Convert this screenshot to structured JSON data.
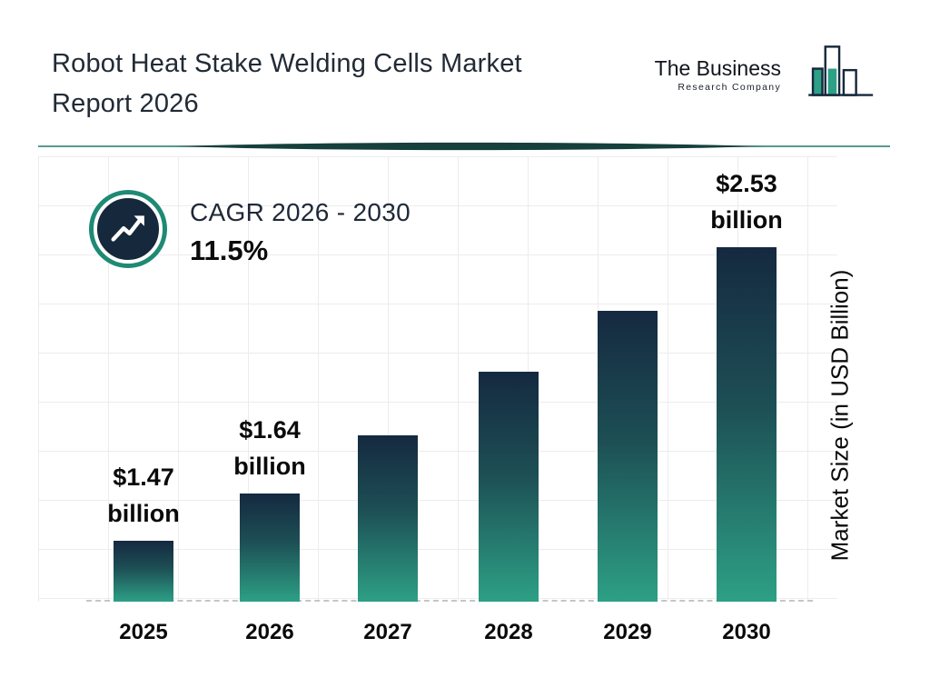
{
  "header": {
    "title": "Robot Heat Stake Welding Cells Market Report 2026",
    "title_line1": "Robot Heat Stake Welding Cells Market",
    "title_line2": "Report 2026"
  },
  "logo": {
    "line1": "The Business",
    "line2": "Research Company"
  },
  "cagr": {
    "label": "CAGR 2026 - 2030",
    "value": "11.5%"
  },
  "chart_data": {
    "type": "bar",
    "title": "Robot Heat Stake Welding Cells Market Report 2026",
    "categories": [
      "2025",
      "2026",
      "2027",
      "2028",
      "2029",
      "2030"
    ],
    "values": [
      1.47,
      1.64,
      1.85,
      2.08,
      2.3,
      2.53
    ],
    "bar_labels": [
      [
        "$1.47",
        "billion"
      ],
      [
        "$1.64",
        "billion"
      ],
      null,
      null,
      null,
      [
        "$2.53",
        "billion"
      ]
    ],
    "labeled_values": {
      "2025": "$1.47 billion",
      "2026": "$1.64 billion",
      "2030": "$2.53 billion"
    },
    "xlabel": "",
    "ylabel": "Market Size (in USD Billion)",
    "baseline_value": 1.25,
    "grid": true,
    "legend": false,
    "colors": {
      "bar_top": "#152940",
      "bar_mid": "#1d4f55",
      "bar_bottom": "#2da085",
      "accent_teal": "#1f8a74",
      "dark_navy": "#16283c"
    }
  }
}
